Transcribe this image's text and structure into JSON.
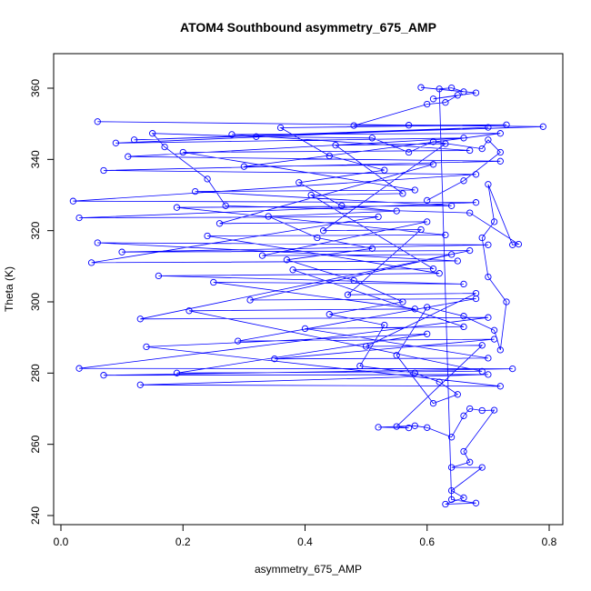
{
  "chart_data": {
    "type": "scatter",
    "title": "ATOM4 Southbound asymmetry_675_AMP",
    "xlabel": "asymmetry_675_AMP",
    "ylabel": "Theta (K)",
    "xlim": [
      0,
      0.8
    ],
    "ylim": [
      240,
      360
    ],
    "x_ticks": [
      "0.0",
      "0.2",
      "0.4",
      "0.6",
      "0.8"
    ],
    "y_ticks": [
      "240",
      "260",
      "280",
      "300",
      "320",
      "340",
      "360"
    ],
    "grid": false,
    "legend": "none",
    "marker": "open-circle",
    "connected": true,
    "color": "#0000ff",
    "series": [
      {
        "values": [
          [
            0.06,
            350.6
          ],
          [
            0.79,
            349.2
          ],
          [
            0.12,
            345.5
          ],
          [
            0.7,
            349.0
          ],
          [
            0.09,
            344.6
          ],
          [
            0.66,
            346.0
          ],
          [
            0.11,
            340.8
          ],
          [
            0.72,
            339.5
          ],
          [
            0.07,
            336.9
          ],
          [
            0.68,
            335.8
          ],
          [
            0.02,
            328.3
          ],
          [
            0.68,
            327.9
          ],
          [
            0.03,
            323.6
          ],
          [
            0.52,
            323.9
          ],
          [
            0.05,
            311.0
          ],
          [
            0.65,
            311.5
          ],
          [
            0.06,
            316.6
          ],
          [
            0.7,
            316.0
          ],
          [
            0.1,
            314.0
          ],
          [
            0.67,
            314.4
          ],
          [
            0.13,
            295.2
          ],
          [
            0.7,
            295.6
          ],
          [
            0.03,
            281.3
          ],
          [
            0.74,
            281.2
          ],
          [
            0.07,
            279.4
          ],
          [
            0.7,
            279.6
          ],
          [
            0.13,
            276.7
          ],
          [
            0.72,
            276.3
          ],
          [
            0.14,
            287.4
          ],
          [
            0.6,
            291.0
          ],
          [
            0.19,
            280.0
          ],
          [
            0.69,
            280.5
          ],
          [
            0.21,
            297.5
          ],
          [
            0.58,
            298.0
          ],
          [
            0.25,
            305.5
          ],
          [
            0.66,
            305.0
          ],
          [
            0.16,
            307.3
          ],
          [
            0.62,
            308.0
          ],
          [
            0.24,
            318.5
          ],
          [
            0.63,
            318.8
          ],
          [
            0.19,
            326.5
          ],
          [
            0.64,
            327.0
          ],
          [
            0.22,
            331.0
          ],
          [
            0.58,
            331.4
          ],
          [
            0.2,
            342.0
          ],
          [
            0.67,
            342.5
          ],
          [
            0.28,
            347.0
          ],
          [
            0.72,
            347.3
          ],
          [
            0.3,
            338.0
          ],
          [
            0.61,
            338.6
          ],
          [
            0.26,
            322.0
          ],
          [
            0.6,
            322.5
          ],
          [
            0.33,
            313.0
          ],
          [
            0.64,
            313.3
          ],
          [
            0.31,
            300.5
          ],
          [
            0.68,
            300.9
          ],
          [
            0.29,
            289.0
          ],
          [
            0.71,
            289.5
          ],
          [
            0.35,
            284.0
          ],
          [
            0.7,
            284.2
          ],
          [
            0.4,
            292.5
          ],
          [
            0.66,
            293.0
          ],
          [
            0.38,
            309.0
          ],
          [
            0.61,
            309.3
          ],
          [
            0.41,
            330.0
          ],
          [
            0.56,
            330.4
          ],
          [
            0.45,
            344.0
          ],
          [
            0.63,
            344.4
          ],
          [
            0.43,
            320.0
          ],
          [
            0.59,
            320.3
          ],
          [
            0.47,
            302.0
          ],
          [
            0.68,
            302.4
          ],
          [
            0.5,
            287.5
          ],
          [
            0.69,
            287.8
          ],
          [
            0.55,
            265.0
          ],
          [
            0.57,
            264.6
          ],
          [
            0.52,
            264.8
          ],
          [
            0.58,
            265.2
          ],
          [
            0.6,
            264.7
          ],
          [
            0.64,
            262.0
          ],
          [
            0.66,
            268.0
          ],
          [
            0.67,
            270.0
          ],
          [
            0.69,
            269.5
          ],
          [
            0.71,
            269.6
          ],
          [
            0.66,
            258.0
          ],
          [
            0.67,
            255.0
          ],
          [
            0.64,
            253.5
          ],
          [
            0.69,
            253.5
          ],
          [
            0.64,
            247.0
          ],
          [
            0.66,
            245.0
          ],
          [
            0.63,
            243.2
          ],
          [
            0.68,
            243.5
          ],
          [
            0.64,
            244.5
          ],
          [
            0.62,
            359.8
          ],
          [
            0.64,
            360.1
          ],
          [
            0.66,
            359.0
          ],
          [
            0.59,
            360.2
          ],
          [
            0.68,
            358.7
          ],
          [
            0.61,
            357.0
          ],
          [
            0.65,
            358.0
          ],
          [
            0.63,
            356.0
          ],
          [
            0.6,
            355.5
          ],
          [
            0.48,
            349.5
          ],
          [
            0.57,
            349.6
          ],
          [
            0.73,
            349.7
          ],
          [
            0.36,
            348.9
          ],
          [
            0.44,
            341.0
          ],
          [
            0.53,
            337.0
          ],
          [
            0.39,
            333.5
          ],
          [
            0.46,
            327.0
          ],
          [
            0.55,
            325.5
          ],
          [
            0.34,
            324.0
          ],
          [
            0.42,
            318.0
          ],
          [
            0.51,
            315.0
          ],
          [
            0.37,
            311.8
          ],
          [
            0.48,
            306.0
          ],
          [
            0.56,
            300.0
          ],
          [
            0.44,
            296.5
          ],
          [
            0.53,
            293.5
          ],
          [
            0.49,
            282.0
          ],
          [
            0.58,
            280.0
          ],
          [
            0.62,
            277.5
          ],
          [
            0.65,
            274.0
          ],
          [
            0.61,
            271.5
          ],
          [
            0.55,
            285.0
          ],
          [
            0.6,
            298.5
          ],
          [
            0.66,
            296.0
          ],
          [
            0.71,
            292.0
          ],
          [
            0.72,
            286.5
          ],
          [
            0.73,
            300.0
          ],
          [
            0.7,
            307.0
          ],
          [
            0.69,
            318.0
          ],
          [
            0.71,
            322.5
          ],
          [
            0.7,
            333.0
          ],
          [
            0.74,
            316.0
          ],
          [
            0.75,
            316.2
          ],
          [
            0.67,
            325.0
          ],
          [
            0.27,
            327.0
          ],
          [
            0.24,
            334.5
          ],
          [
            0.17,
            343.5
          ],
          [
            0.15,
            347.3
          ],
          [
            0.32,
            346.4
          ],
          [
            0.51,
            346.0
          ],
          [
            0.57,
            342.0
          ],
          [
            0.61,
            345.0
          ],
          [
            0.69,
            343.0
          ],
          [
            0.7,
            345.5
          ],
          [
            0.72,
            342.0
          ],
          [
            0.66,
            334.0
          ],
          [
            0.6,
            328.5
          ]
        ]
      }
    ]
  }
}
